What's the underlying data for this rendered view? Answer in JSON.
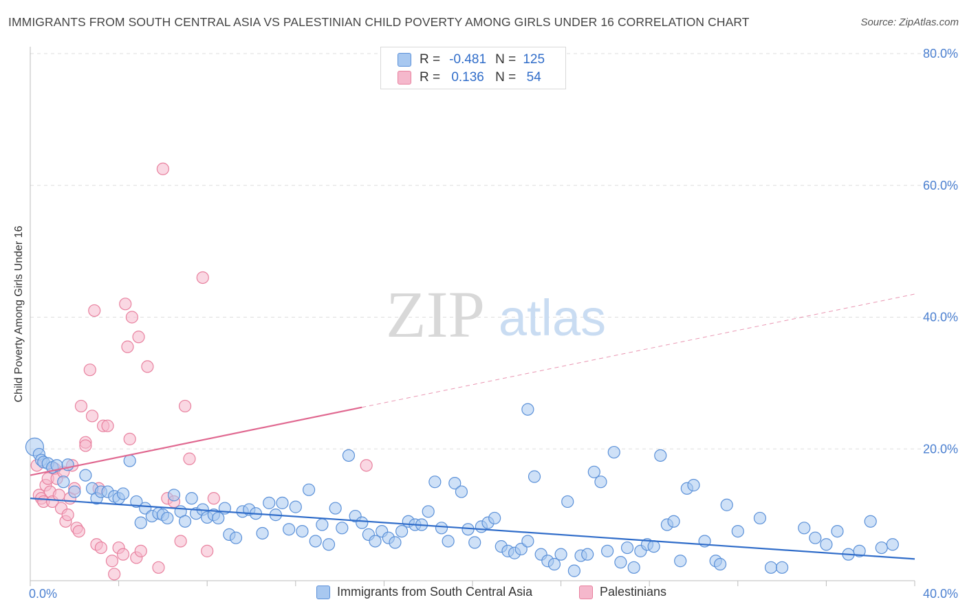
{
  "header": {
    "title": "IMMIGRANTS FROM SOUTH CENTRAL ASIA VS PALESTINIAN CHILD POVERTY AMONG GIRLS UNDER 16 CORRELATION CHART",
    "source": "Source: ZipAtlas.com"
  },
  "watermark": {
    "zip": "ZIP",
    "atlas": "atlas"
  },
  "stats": {
    "rows": [
      {
        "r_label": "R =",
        "r_value": "-0.481",
        "n_label": "N =",
        "n_value": "125",
        "color": "#a8c8f0"
      },
      {
        "r_label": "R =",
        "r_value": "0.136",
        "n_label": "N =",
        "n_value": "54",
        "color": "#f5b8cc"
      }
    ]
  },
  "colors": {
    "blue_fill": "#a8c8f0",
    "blue_stroke": "#5a90d8",
    "blue_line": "#2f6cc9",
    "pink_fill": "#f5b8cc",
    "pink_stroke": "#e8809e",
    "pink_line": "#e06890",
    "tick_label": "#4a7fd0",
    "grid": "#dddddd"
  },
  "chart_data": {
    "type": "scatter",
    "ylabel": "Child Poverty Among Girls Under 16",
    "xlim": [
      0,
      40
    ],
    "ylim": [
      0,
      80
    ],
    "x_tick_labels": [
      {
        "value": 0,
        "label": "0.0%"
      },
      {
        "value": 40,
        "label": "40.0%"
      }
    ],
    "y_tick_labels": [
      {
        "value": 20,
        "label": "20.0%"
      },
      {
        "value": 40,
        "label": "40.0%"
      },
      {
        "value": 60,
        "label": "60.0%"
      },
      {
        "value": 80,
        "label": "80.0%"
      }
    ],
    "grid": true,
    "legend": "bottom",
    "series": [
      {
        "name": "Immigrants from South Central Asia",
        "trend": {
          "x0": 0,
          "y0": 12.5,
          "x1": 40,
          "y1": 3.3
        },
        "points": [
          [
            0.2,
            20.3
          ],
          [
            0.4,
            19.2
          ],
          [
            0.5,
            18.3
          ],
          [
            0.6,
            18.0
          ],
          [
            0.8,
            17.8
          ],
          [
            1.0,
            17.2
          ],
          [
            1.2,
            17.5
          ],
          [
            1.5,
            15.0
          ],
          [
            1.7,
            17.6
          ],
          [
            2.0,
            13.5
          ],
          [
            2.5,
            16.0
          ],
          [
            2.8,
            14.0
          ],
          [
            3.0,
            12.5
          ],
          [
            3.2,
            13.5
          ],
          [
            3.5,
            13.5
          ],
          [
            3.8,
            12.8
          ],
          [
            4.0,
            12.5
          ],
          [
            4.2,
            13.2
          ],
          [
            4.5,
            18.2
          ],
          [
            4.8,
            12.0
          ],
          [
            5.0,
            8.8
          ],
          [
            5.2,
            11.0
          ],
          [
            5.5,
            9.8
          ],
          [
            5.8,
            10.2
          ],
          [
            6.0,
            10.0
          ],
          [
            6.2,
            9.5
          ],
          [
            6.5,
            13.0
          ],
          [
            6.8,
            10.5
          ],
          [
            7.0,
            9.0
          ],
          [
            7.3,
            12.5
          ],
          [
            7.5,
            10.2
          ],
          [
            7.8,
            10.8
          ],
          [
            8.0,
            9.6
          ],
          [
            8.3,
            10.0
          ],
          [
            8.5,
            9.5
          ],
          [
            8.8,
            11.0
          ],
          [
            9.0,
            7.0
          ],
          [
            9.3,
            6.5
          ],
          [
            9.6,
            10.5
          ],
          [
            9.9,
            10.8
          ],
          [
            10.2,
            10.2
          ],
          [
            10.5,
            7.2
          ],
          [
            10.8,
            11.8
          ],
          [
            11.1,
            10.0
          ],
          [
            11.4,
            11.8
          ],
          [
            11.7,
            7.8
          ],
          [
            12.0,
            11.2
          ],
          [
            12.3,
            7.5
          ],
          [
            12.6,
            13.8
          ],
          [
            12.9,
            6.0
          ],
          [
            13.2,
            8.5
          ],
          [
            13.5,
            5.5
          ],
          [
            13.8,
            11.0
          ],
          [
            14.1,
            8.0
          ],
          [
            14.4,
            19.0
          ],
          [
            14.7,
            9.8
          ],
          [
            15.0,
            8.8
          ],
          [
            15.3,
            7.0
          ],
          [
            15.6,
            6.0
          ],
          [
            15.9,
            7.5
          ],
          [
            16.2,
            6.5
          ],
          [
            16.5,
            5.8
          ],
          [
            16.8,
            7.5
          ],
          [
            17.1,
            9.0
          ],
          [
            17.4,
            8.5
          ],
          [
            17.7,
            8.5
          ],
          [
            18.0,
            10.5
          ],
          [
            18.3,
            15.0
          ],
          [
            18.6,
            8.0
          ],
          [
            18.9,
            6.0
          ],
          [
            19.2,
            14.8
          ],
          [
            19.5,
            13.5
          ],
          [
            19.8,
            7.8
          ],
          [
            20.1,
            5.8
          ],
          [
            20.4,
            8.2
          ],
          [
            20.7,
            8.8
          ],
          [
            21.0,
            9.5
          ],
          [
            21.3,
            5.2
          ],
          [
            21.6,
            4.5
          ],
          [
            21.9,
            4.2
          ],
          [
            22.2,
            4.8
          ],
          [
            22.5,
            6.0
          ],
          [
            22.5,
            26.0
          ],
          [
            22.8,
            15.8
          ],
          [
            23.1,
            4.0
          ],
          [
            23.4,
            3.0
          ],
          [
            23.7,
            2.5
          ],
          [
            24.0,
            4.0
          ],
          [
            24.3,
            12.0
          ],
          [
            24.6,
            1.5
          ],
          [
            24.9,
            3.8
          ],
          [
            25.2,
            4.0
          ],
          [
            25.5,
            16.5
          ],
          [
            25.8,
            15.0
          ],
          [
            26.1,
            4.5
          ],
          [
            26.4,
            19.5
          ],
          [
            26.7,
            2.8
          ],
          [
            27.0,
            5.0
          ],
          [
            27.3,
            2.0
          ],
          [
            27.6,
            4.5
          ],
          [
            27.9,
            5.5
          ],
          [
            28.2,
            5.2
          ],
          [
            28.5,
            19.0
          ],
          [
            28.8,
            8.5
          ],
          [
            29.1,
            9.0
          ],
          [
            29.4,
            3.0
          ],
          [
            29.7,
            14.0
          ],
          [
            30.0,
            14.5
          ],
          [
            30.5,
            6.0
          ],
          [
            31.0,
            3.0
          ],
          [
            31.2,
            2.5
          ],
          [
            31.5,
            11.5
          ],
          [
            32.0,
            7.5
          ],
          [
            33.0,
            9.5
          ],
          [
            33.5,
            2.0
          ],
          [
            34.0,
            2.0
          ],
          [
            35.0,
            8.0
          ],
          [
            35.5,
            6.5
          ],
          [
            36.0,
            5.5
          ],
          [
            36.5,
            7.5
          ],
          [
            37.0,
            4.0
          ],
          [
            37.5,
            4.5
          ],
          [
            38.0,
            9.0
          ],
          [
            38.5,
            5.0
          ],
          [
            39.0,
            5.5
          ]
        ]
      },
      {
        "name": "Palestinians",
        "trend": {
          "x0": 0,
          "y0": 16.0,
          "x1": 40,
          "y1": 43.5,
          "solid_until_x": 15.0
        },
        "points": [
          [
            0.3,
            17.5
          ],
          [
            0.4,
            13.0
          ],
          [
            0.5,
            12.5
          ],
          [
            0.6,
            12.0
          ],
          [
            0.7,
            14.5
          ],
          [
            0.8,
            15.5
          ],
          [
            0.9,
            13.5
          ],
          [
            1.0,
            12.0
          ],
          [
            1.1,
            17.0
          ],
          [
            1.2,
            15.5
          ],
          [
            1.3,
            13.0
          ],
          [
            1.4,
            11.0
          ],
          [
            1.5,
            16.5
          ],
          [
            1.6,
            9.0
          ],
          [
            1.7,
            10.0
          ],
          [
            1.8,
            12.5
          ],
          [
            1.9,
            17.5
          ],
          [
            2.0,
            14.0
          ],
          [
            2.1,
            8.0
          ],
          [
            2.2,
            7.5
          ],
          [
            2.3,
            26.5
          ],
          [
            2.5,
            21.0
          ],
          [
            2.5,
            20.5
          ],
          [
            2.7,
            32.0
          ],
          [
            2.8,
            25.0
          ],
          [
            2.9,
            41.0
          ],
          [
            3.0,
            5.5
          ],
          [
            3.1,
            14.0
          ],
          [
            3.2,
            5.0
          ],
          [
            3.3,
            23.5
          ],
          [
            3.5,
            23.5
          ],
          [
            3.7,
            3.0
          ],
          [
            3.8,
            1.0
          ],
          [
            4.0,
            5.0
          ],
          [
            4.2,
            4.0
          ],
          [
            4.3,
            42.0
          ],
          [
            4.4,
            35.5
          ],
          [
            4.5,
            21.5
          ],
          [
            4.6,
            40.0
          ],
          [
            4.8,
            3.5
          ],
          [
            4.9,
            37.0
          ],
          [
            5.0,
            4.5
          ],
          [
            5.3,
            32.5
          ],
          [
            5.8,
            2.0
          ],
          [
            6.0,
            62.5
          ],
          [
            6.2,
            12.5
          ],
          [
            6.5,
            12.0
          ],
          [
            6.8,
            6.0
          ],
          [
            7.0,
            26.5
          ],
          [
            7.2,
            18.5
          ],
          [
            7.8,
            46.0
          ],
          [
            8.0,
            4.5
          ],
          [
            8.3,
            12.5
          ],
          [
            15.2,
            17.5
          ]
        ]
      }
    ]
  },
  "legend_bottom": {
    "items": [
      {
        "label": "Immigrants from South Central Asia",
        "color": "#a8c8f0"
      },
      {
        "label": "Palestinians",
        "color": "#f5b8cc"
      }
    ]
  }
}
